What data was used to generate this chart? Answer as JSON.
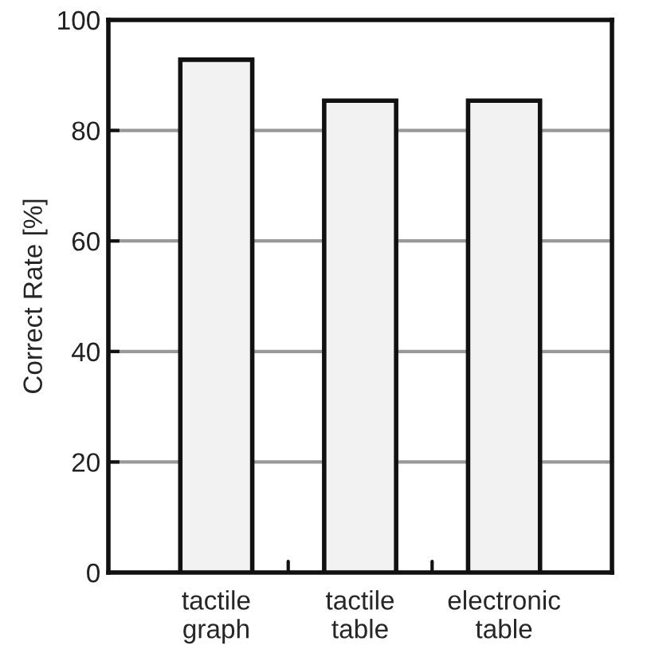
{
  "chart_data": {
    "type": "bar",
    "ylabel": "Correct Rate [%]",
    "categories": [
      "tactile\ngraph",
      "tactile\ntable",
      "electronic\ntable"
    ],
    "values": [
      92.8,
      85.4,
      85.4
    ],
    "color": "#f2f2f2",
    "ylim": [
      0,
      100
    ],
    "yticks": [
      0,
      20,
      40,
      60,
      80,
      100
    ],
    "grid": "y",
    "legend": false
  }
}
